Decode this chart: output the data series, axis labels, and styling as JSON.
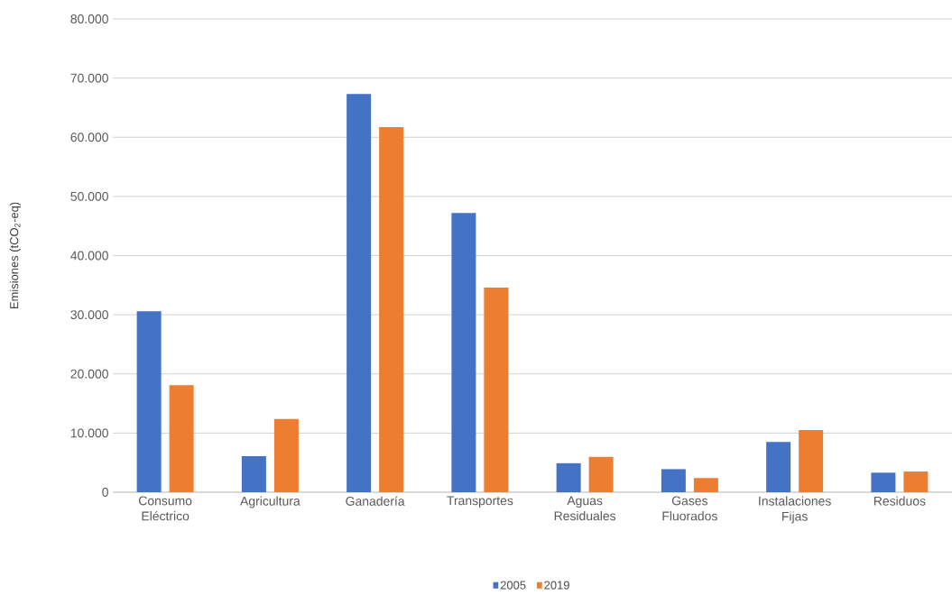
{
  "chart_data": {
    "type": "bar",
    "ylabel": "Emisiones (tCO$_{2}$-eq)",
    "categories": [
      "Consumo Eléctrico",
      "Agricultura",
      "Ganadería",
      "Transportes",
      "Aguas Residuales",
      "Gases Fluorados",
      "Instalaciones Fijas",
      "Residuos"
    ],
    "series": [
      {
        "name": "2005",
        "color": "#4472c4",
        "values": [
          30600,
          6100,
          67300,
          47200,
          4900,
          3900,
          8500,
          3300
        ]
      },
      {
        "name": "2019",
        "color": "#ed7d31",
        "values": [
          18100,
          12400,
          61700,
          34600,
          6000,
          2400,
          10500,
          3500
        ]
      }
    ],
    "ylim": [
      0,
      80000
    ],
    "yticks": [
      {
        "value": 0,
        "label": "0"
      },
      {
        "value": 10000,
        "label": "10.000"
      },
      {
        "value": 20000,
        "label": "20.000"
      },
      {
        "value": 30000,
        "label": "30.000"
      },
      {
        "value": 40000,
        "label": "40.000"
      },
      {
        "value": 50000,
        "label": "50.000"
      },
      {
        "value": 60000,
        "label": "60.000"
      },
      {
        "value": 70000,
        "label": "70.000"
      },
      {
        "value": 80000,
        "label": "80.000"
      }
    ],
    "grid": "y",
    "legend": "bottom"
  }
}
